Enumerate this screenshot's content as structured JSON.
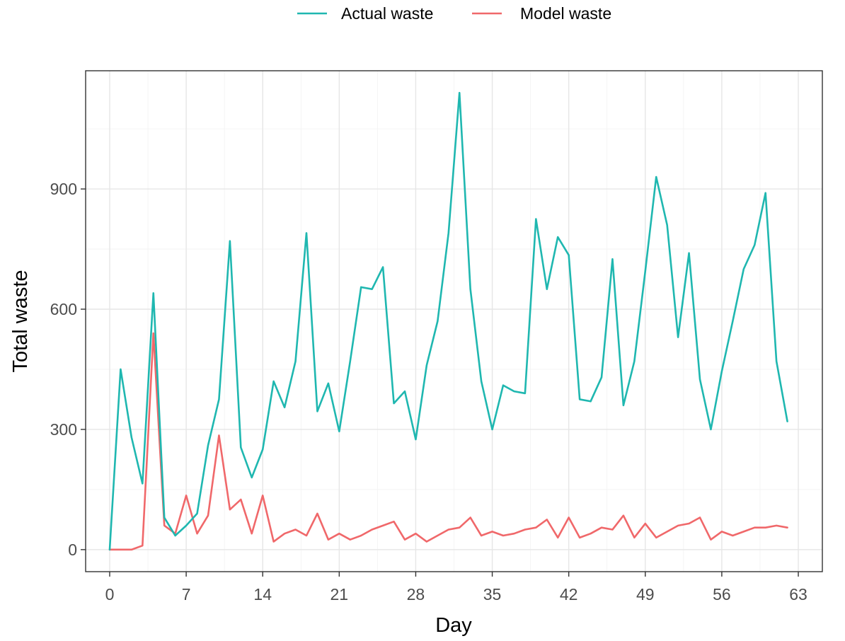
{
  "chart_data": {
    "type": "line",
    "xlabel": "Day",
    "ylabel": "Total waste",
    "xlim": [
      -2.2,
      65.2
    ],
    "ylim": [
      -55,
      1195
    ],
    "x_ticks": [
      0,
      7,
      14,
      21,
      28,
      35,
      42,
      49,
      56,
      63
    ],
    "y_ticks": [
      0,
      300,
      600,
      900
    ],
    "grid": true,
    "legend_position": "top",
    "x": [
      0,
      1,
      2,
      3,
      4,
      5,
      6,
      7,
      8,
      9,
      10,
      11,
      12,
      13,
      14,
      15,
      16,
      17,
      18,
      19,
      20,
      21,
      22,
      23,
      24,
      25,
      26,
      27,
      28,
      29,
      30,
      31,
      32,
      33,
      34,
      35,
      36,
      37,
      38,
      39,
      40,
      41,
      42,
      43,
      44,
      45,
      46,
      47,
      48,
      49,
      50,
      51,
      52,
      53,
      54,
      55,
      56,
      57,
      58,
      59,
      60,
      61,
      62
    ],
    "series": [
      {
        "name": "Actual waste",
        "color": "#1fb7b0",
        "values": [
          0,
          450,
          280,
          165,
          640,
          80,
          35,
          60,
          90,
          260,
          375,
          770,
          255,
          180,
          250,
          420,
          355,
          470,
          790,
          345,
          415,
          295,
          470,
          655,
          650,
          705,
          365,
          395,
          275,
          460,
          570,
          790,
          1140,
          650,
          420,
          300,
          410,
          395,
          390,
          825,
          650,
          780,
          735,
          375,
          370,
          430,
          725,
          360,
          470,
          695,
          930,
          810,
          530,
          740,
          425,
          300,
          445,
          570,
          700,
          760,
          890,
          470,
          320
        ]
      },
      {
        "name": "Model waste",
        "color": "#f0686a",
        "values": [
          0,
          0,
          0,
          10,
          540,
          60,
          40,
          135,
          40,
          85,
          285,
          100,
          125,
          40,
          135,
          20,
          40,
          50,
          35,
          90,
          25,
          40,
          25,
          35,
          50,
          60,
          70,
          25,
          40,
          20,
          35,
          50,
          55,
          80,
          35,
          45,
          35,
          40,
          50,
          55,
          75,
          30,
          80,
          30,
          40,
          55,
          50,
          85,
          30,
          65,
          30,
          45,
          60,
          65,
          80,
          25,
          45,
          35,
          45,
          55,
          55,
          60,
          55
        ]
      }
    ]
  }
}
